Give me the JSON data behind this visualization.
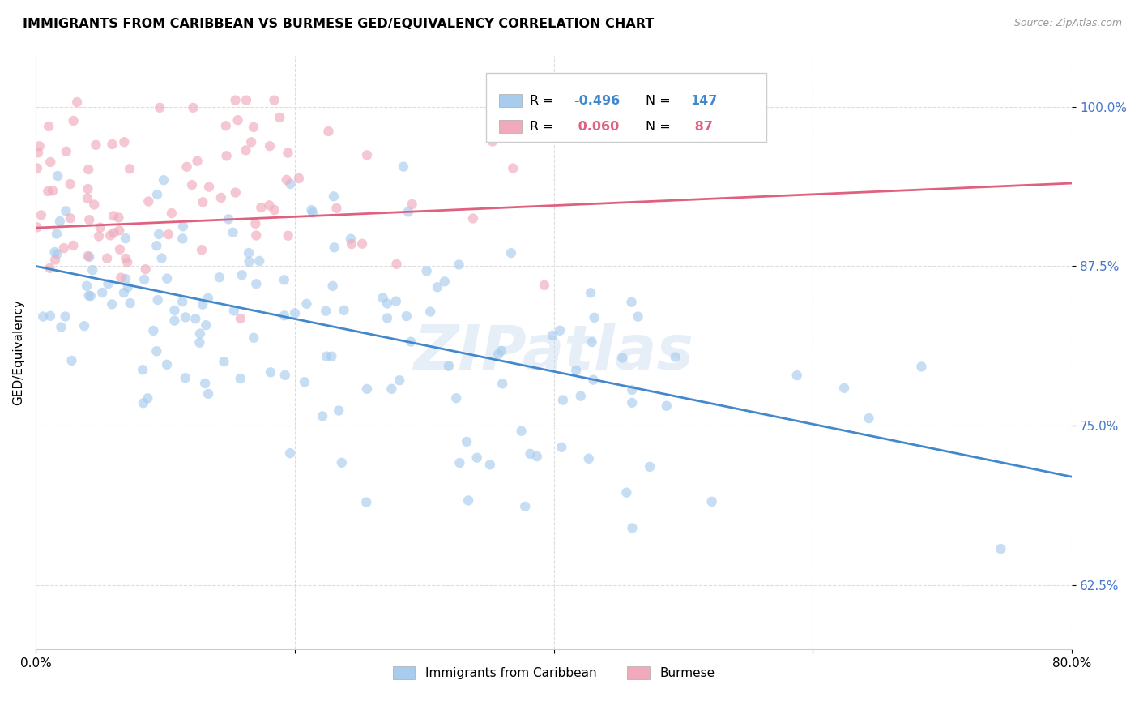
{
  "title": "IMMIGRANTS FROM CARIBBEAN VS BURMESE GED/EQUIVALENCY CORRELATION CHART",
  "source": "Source: ZipAtlas.com",
  "ylabel": "GED/Equivalency",
  "ytick_vals": [
    0.625,
    0.75,
    0.875,
    1.0
  ],
  "ytick_labels": [
    "62.5%",
    "75.0%",
    "87.5%",
    "100.0%"
  ],
  "xtick_vals": [
    0.0,
    0.2,
    0.4,
    0.6,
    0.8
  ],
  "xtick_labels": [
    "0.0%",
    "",
    "",
    "",
    "80.0%"
  ],
  "xmin": 0.0,
  "xmax": 0.8,
  "ymin": 0.575,
  "ymax": 1.04,
  "blue_R": -0.496,
  "blue_N": 147,
  "pink_R": 0.06,
  "pink_N": 87,
  "blue_color": "#A8CCEE",
  "pink_color": "#F0AABC",
  "blue_line_color": "#4488CC",
  "pink_line_color": "#E06080",
  "legend_label_blue": "Immigrants from Caribbean",
  "legend_label_pink": "Burmese",
  "marker_size": 80,
  "alpha": 0.65,
  "watermark": "ZIPatlas",
  "grid_color": "#DDDDDD",
  "grid_style": "--"
}
